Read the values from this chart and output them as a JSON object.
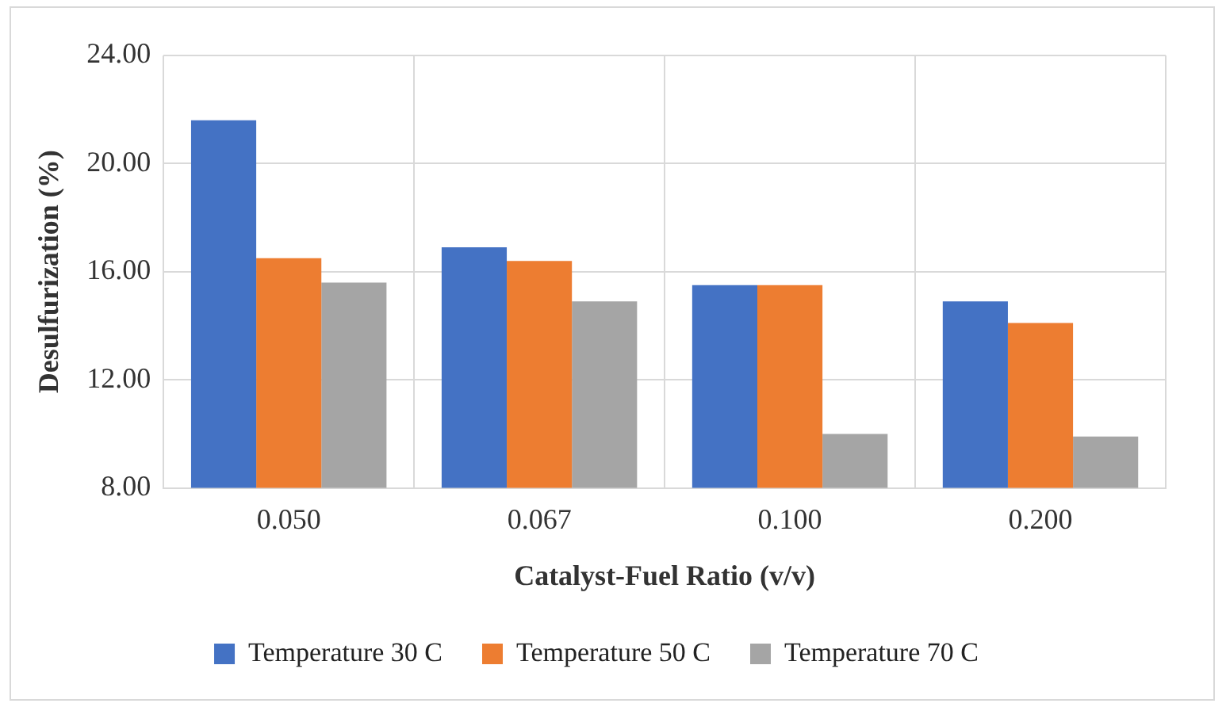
{
  "chart_data": {
    "type": "bar",
    "xlabel": "Catalyst-Fuel Ratio (v/v)",
    "ylabel": "Desulfurization (%)",
    "categories": [
      "0.050",
      "0.067",
      "0.100",
      "0.200"
    ],
    "series": [
      {
        "name": "Temperature 30 C",
        "color": "#4472c4",
        "values": [
          21.6,
          16.9,
          15.5,
          14.9
        ]
      },
      {
        "name": "Temperature 50 C",
        "color": "#ed7d31",
        "values": [
          16.5,
          16.4,
          15.5,
          14.1
        ]
      },
      {
        "name": "Temperature 70 C",
        "color": "#a5a5a5",
        "values": [
          15.6,
          14.9,
          10.0,
          9.9
        ]
      }
    ],
    "ylim": [
      8,
      24
    ],
    "yticks": [
      {
        "value": 8,
        "label": "8.00"
      },
      {
        "value": 12,
        "label": "12.00"
      },
      {
        "value": 16,
        "label": "16.00"
      },
      {
        "value": 20,
        "label": "20.00"
      },
      {
        "value": 24,
        "label": "24.00"
      }
    ],
    "grid": true,
    "legend": "bottom"
  }
}
